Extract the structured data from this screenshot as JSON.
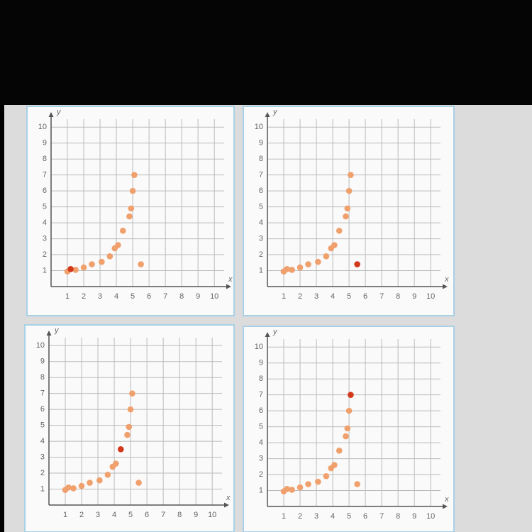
{
  "chart_data": [
    {
      "type": "scatter",
      "xlabel": "x",
      "ylabel": "y",
      "xlim": [
        0,
        10.6
      ],
      "ylim": [
        0,
        10.5
      ],
      "xticks": [
        1,
        2,
        3,
        4,
        5,
        6,
        7,
        8,
        9,
        10
      ],
      "yticks": [
        1,
        2,
        3,
        4,
        5,
        6,
        7,
        8,
        9,
        10
      ],
      "grid": true,
      "series": [
        {
          "color": "#f0a06c",
          "x": [
            1,
            1.5,
            2,
            2.5,
            3.1,
            3.6,
            3.9,
            4.1,
            4.4,
            4.8,
            4.9,
            5,
            5.1,
            5.5
          ],
          "values": [
            0.95,
            1.05,
            1.2,
            1.4,
            1.55,
            1.9,
            2.4,
            2.6,
            3.5,
            4.4,
            4.9,
            6,
            7,
            1.4
          ]
        },
        {
          "color": "#d2381a",
          "x": [
            1.2
          ],
          "values": [
            1.1
          ]
        }
      ]
    },
    {
      "type": "scatter",
      "xlabel": "x",
      "ylabel": "y",
      "xlim": [
        0,
        10.6
      ],
      "ylim": [
        0,
        10.5
      ],
      "xticks": [
        1,
        2,
        3,
        4,
        5,
        6,
        7,
        8,
        9,
        10
      ],
      "yticks": [
        1,
        2,
        3,
        4,
        5,
        6,
        7,
        8,
        9,
        10
      ],
      "grid": true,
      "series": [
        {
          "color": "#f0a06c",
          "x": [
            1,
            1.2,
            1.5,
            2,
            2.5,
            3.1,
            3.6,
            3.9,
            4.1,
            4.4,
            4.8,
            4.9,
            5,
            5.1
          ],
          "values": [
            0.95,
            1.1,
            1.05,
            1.2,
            1.4,
            1.55,
            1.9,
            2.4,
            2.6,
            3.5,
            4.4,
            4.9,
            6,
            7
          ]
        },
        {
          "color": "#d2381a",
          "x": [
            5.5
          ],
          "values": [
            1.4
          ]
        }
      ]
    },
    {
      "type": "scatter",
      "xlabel": "x",
      "ylabel": "y",
      "xlim": [
        0,
        10.6
      ],
      "ylim": [
        0,
        10.5
      ],
      "xticks": [
        1,
        2,
        3,
        4,
        5,
        6,
        7,
        8,
        9,
        10
      ],
      "yticks": [
        1,
        2,
        3,
        4,
        5,
        6,
        7,
        8,
        9,
        10
      ],
      "grid": true,
      "series": [
        {
          "color": "#f0a06c",
          "x": [
            1,
            1.2,
            1.5,
            2,
            2.5,
            3.1,
            3.6,
            3.9,
            4.1,
            4.8,
            4.9,
            5,
            5.1,
            5.5
          ],
          "values": [
            0.95,
            1.1,
            1.05,
            1.2,
            1.4,
            1.55,
            1.9,
            2.4,
            2.6,
            4.4,
            4.9,
            6,
            7,
            1.4
          ]
        },
        {
          "color": "#d2381a",
          "x": [
            4.4
          ],
          "values": [
            3.5
          ]
        }
      ]
    },
    {
      "type": "scatter",
      "xlabel": "x",
      "ylabel": "y",
      "xlim": [
        0,
        10.6
      ],
      "ylim": [
        0,
        10.5
      ],
      "xticks": [
        1,
        2,
        3,
        4,
        5,
        6,
        7,
        8,
        9,
        10
      ],
      "yticks": [
        1,
        2,
        3,
        4,
        5,
        6,
        7,
        8,
        9,
        10
      ],
      "grid": true,
      "series": [
        {
          "color": "#f0a06c",
          "x": [
            1,
            1.2,
            1.5,
            2,
            2.5,
            3.1,
            3.6,
            3.9,
            4.1,
            4.4,
            4.8,
            4.9,
            5,
            5.5
          ],
          "values": [
            0.95,
            1.1,
            1.05,
            1.2,
            1.4,
            1.55,
            1.9,
            2.4,
            2.6,
            3.5,
            4.4,
            4.9,
            6,
            1.4
          ]
        },
        {
          "color": "#d2381a",
          "x": [
            5.1
          ],
          "values": [
            7
          ]
        }
      ]
    }
  ]
}
